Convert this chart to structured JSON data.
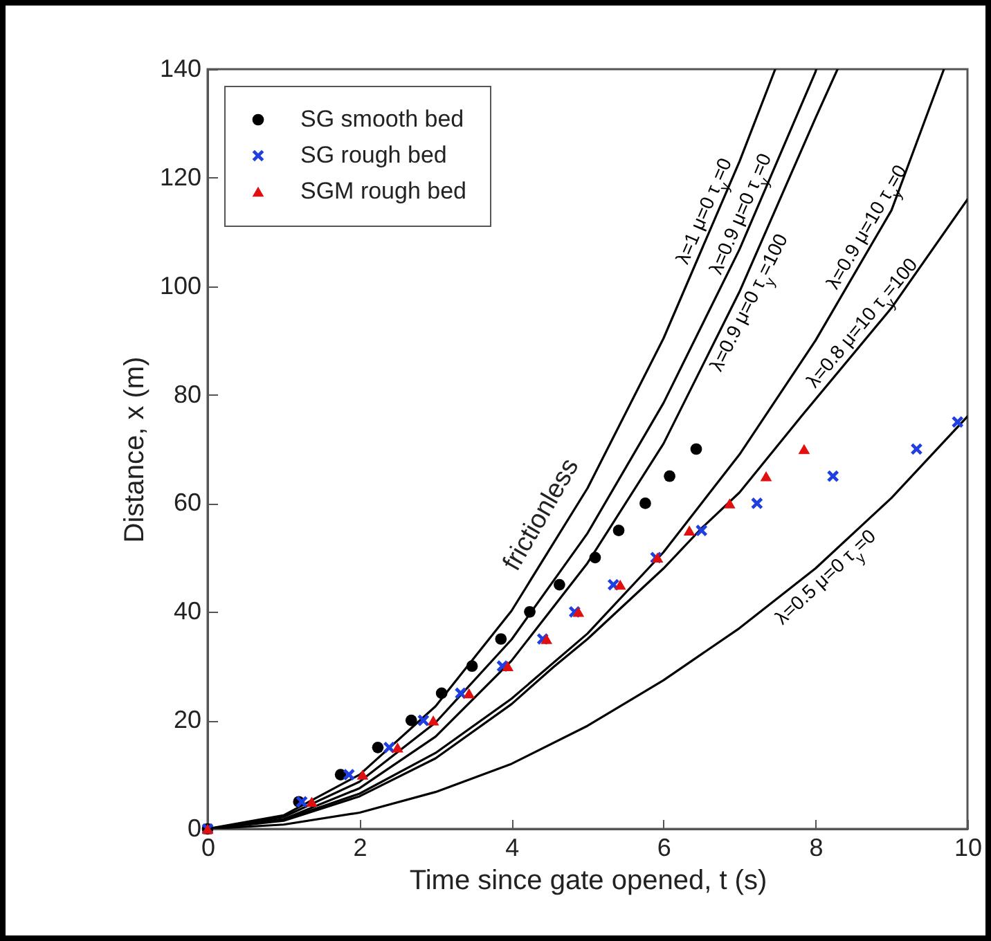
{
  "chart_data": {
    "type": "scatter",
    "xlabel": "Time since gate opened, t (s)",
    "ylabel": "Distance, x (m)",
    "xlim": [
      0,
      10
    ],
    "ylim": [
      0,
      140
    ],
    "xticks": [
      0,
      2,
      4,
      6,
      8,
      10
    ],
    "yticks": [
      0,
      20,
      40,
      60,
      80,
      100,
      120,
      140
    ],
    "grid": false,
    "legend": "top left",
    "series": [
      {
        "name": "SG smooth bed",
        "marker": "circle",
        "color": "#000000",
        "x": [
          0,
          1.2,
          1.75,
          2.24,
          2.68,
          3.08,
          3.48,
          3.86,
          4.24,
          4.63,
          5.1,
          5.41,
          5.76,
          6.08,
          6.43
        ],
        "values": [
          0,
          5,
          10,
          15,
          20,
          25,
          30,
          35,
          40,
          45,
          50,
          55,
          60,
          65,
          70
        ]
      },
      {
        "name": "SG rough bed",
        "marker": "cross",
        "color": "#1f3fe0",
        "x": [
          0,
          1.24,
          1.86,
          2.39,
          2.84,
          3.33,
          3.88,
          4.41,
          4.83,
          5.34,
          5.9,
          6.5,
          7.23,
          8.23,
          9.33,
          9.87
        ],
        "values": [
          0,
          5,
          10,
          15,
          20,
          25,
          30,
          35,
          40,
          45,
          50,
          55,
          60,
          65,
          70,
          75
        ]
      },
      {
        "name": "SGM rough bed",
        "marker": "triangle",
        "color": "#e01010",
        "x": [
          0,
          1.37,
          2.04,
          2.5,
          2.97,
          3.44,
          3.95,
          4.46,
          4.88,
          5.43,
          5.92,
          6.34,
          6.87,
          7.35,
          7.85
        ],
        "values": [
          0,
          5,
          10,
          15,
          20,
          25,
          30,
          35,
          40,
          45,
          50,
          55,
          60,
          65,
          70
        ]
      },
      {
        "name": "λ=1 μ=0 τ$_{y}$=0",
        "type": "line",
        "color": "#000000",
        "x": [
          0,
          1,
          2,
          3,
          4,
          5,
          6,
          7,
          7.47
        ],
        "values": [
          0,
          2.5,
          10,
          22.6,
          40.2,
          62.8,
          90.4,
          123,
          140
        ]
      },
      {
        "name": "λ=0.9 μ=0 τ$_{y}$=0",
        "type": "line",
        "color": "#000000",
        "x": [
          0,
          1,
          2,
          3,
          4,
          5,
          6,
          7,
          8,
          8.01
        ],
        "values": [
          0,
          2.2,
          8.7,
          19.6,
          34.9,
          54.5,
          78.5,
          106.8,
          139.5,
          140
        ]
      },
      {
        "name": "λ=0.9 μ=0 τ$_{y}$=100",
        "type": "line",
        "color": "#000000",
        "x": [
          0,
          1,
          2,
          3,
          4,
          5,
          6,
          7,
          8,
          8.29
        ],
        "values": [
          0,
          1.8,
          7.5,
          17,
          31,
          49,
          71,
          99,
          131,
          140
        ]
      },
      {
        "name": "λ=0.9 μ=10 τ$_{y}$=0",
        "type": "line",
        "color": "#000000",
        "x": [
          0,
          1,
          2,
          3,
          4,
          5,
          6,
          7,
          8,
          9,
          9.69
        ],
        "values": [
          0,
          1.7,
          6.5,
          14,
          24,
          36,
          51,
          69,
          90,
          114,
          140
        ]
      },
      {
        "name": "λ=0.8 μ=10 τ$_{y}$=100",
        "type": "line",
        "color": "#000000",
        "x": [
          0,
          1,
          2,
          3,
          4,
          4.55,
          5,
          6,
          6.5,
          7,
          7.83,
          9,
          10
        ],
        "values": [
          0,
          1.5,
          6,
          13,
          23,
          29.8,
          35,
          48,
          55.4,
          62,
          76.3,
          96,
          116
        ]
      },
      {
        "name": "λ=0.5 μ=0 τ$_{y}$=0",
        "type": "line",
        "color": "#000000",
        "x": [
          0,
          1,
          2,
          3,
          4,
          5,
          6,
          7,
          8,
          9,
          10
        ],
        "values": [
          0,
          0.8,
          3,
          6.8,
          12,
          19,
          27.4,
          37,
          48,
          61,
          76
        ]
      }
    ],
    "annotations": [
      {
        "text": "frictionless",
        "x": 4.7,
        "y": 55.4
      }
    ]
  }
}
